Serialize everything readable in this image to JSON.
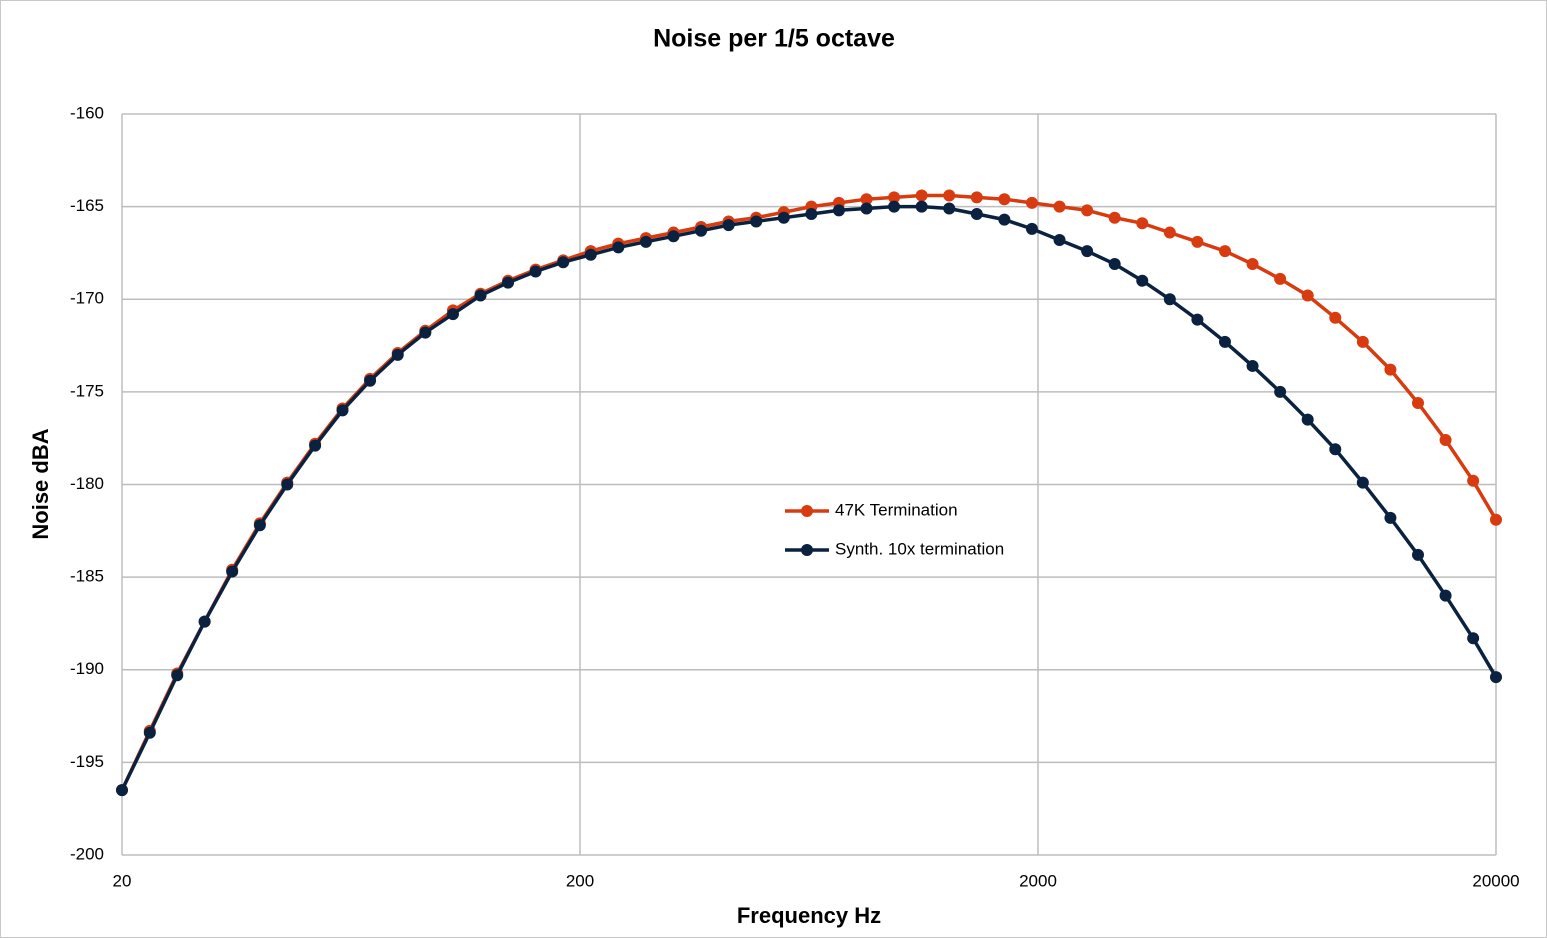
{
  "chart_data": {
    "type": "line",
    "title": "Noise per 1/5 octave",
    "xlabel": "Frequency Hz",
    "ylabel": "Noise dBA",
    "xscale": "log",
    "grid": true,
    "legend": "center",
    "x": [
      20,
      23,
      26.4,
      30.3,
      34.8,
      40,
      45.9,
      52.8,
      60.6,
      69.6,
      80,
      91.9,
      105.6,
      121.3,
      139.3,
      160,
      183.8,
      211.1,
      242.5,
      278.6,
      320,
      367.6,
      422.2,
      485,
      557.2,
      640,
      735.2,
      844.5,
      970.1,
      1114.3,
      1280,
      1470.3,
      1689,
      1940.1,
      2228.6,
      2560,
      2940.7,
      3378,
      3880.3,
      4457.3,
      5120,
      5881.3,
      6756,
      7760.6,
      8914.6,
      10240,
      11762.7,
      13512,
      15521.2,
      17829.2,
      20000
    ],
    "series": [
      {
        "name": "47K Termination",
        "color": "#d83b10",
        "values": [
          -196.5,
          -193.3,
          -190.2,
          -187.4,
          -184.6,
          -182.1,
          -179.9,
          -177.8,
          -175.9,
          -174.3,
          -172.9,
          -171.7,
          -170.6,
          -169.7,
          -169.0,
          -168.4,
          -167.9,
          -167.4,
          -167.0,
          -166.7,
          -166.4,
          -166.1,
          -165.8,
          -165.6,
          -165.3,
          -165.0,
          -164.8,
          -164.6,
          -164.5,
          -164.4,
          -164.4,
          -164.5,
          -164.6,
          -164.8,
          -165.0,
          -165.2,
          -165.6,
          -165.9,
          -166.4,
          -166.9,
          -167.4,
          -168.1,
          -168.9,
          -169.8,
          -171.0,
          -172.3,
          -173.8,
          -175.6,
          -177.6,
          -179.8,
          -181.9
        ]
      },
      {
        "name": "Synth. 10x termination",
        "color": "#0a2240",
        "values": [
          -196.5,
          -193.4,
          -190.3,
          -187.4,
          -184.7,
          -182.2,
          -180.0,
          -177.9,
          -176.0,
          -174.4,
          -173.0,
          -171.8,
          -170.8,
          -169.8,
          -169.1,
          -168.5,
          -168.0,
          -167.6,
          -167.2,
          -166.9,
          -166.6,
          -166.3,
          -166.0,
          -165.8,
          -165.6,
          -165.4,
          -165.2,
          -165.1,
          -165.0,
          -165.0,
          -165.1,
          -165.4,
          -165.7,
          -166.2,
          -166.8,
          -167.4,
          -168.1,
          -169.0,
          -170.0,
          -171.1,
          -172.3,
          -173.6,
          -175.0,
          -176.5,
          -178.1,
          -179.9,
          -181.8,
          -183.8,
          -186.0,
          -188.3,
          -190.4
        ]
      }
    ],
    "xlim": [
      20,
      20000
    ],
    "xticks": [
      20,
      200,
      2000,
      20000
    ],
    "ylim": [
      -200,
      -160
    ],
    "yticks": [
      -200,
      -195,
      -190,
      -185,
      -180,
      -175,
      -170,
      -165,
      -160
    ]
  }
}
